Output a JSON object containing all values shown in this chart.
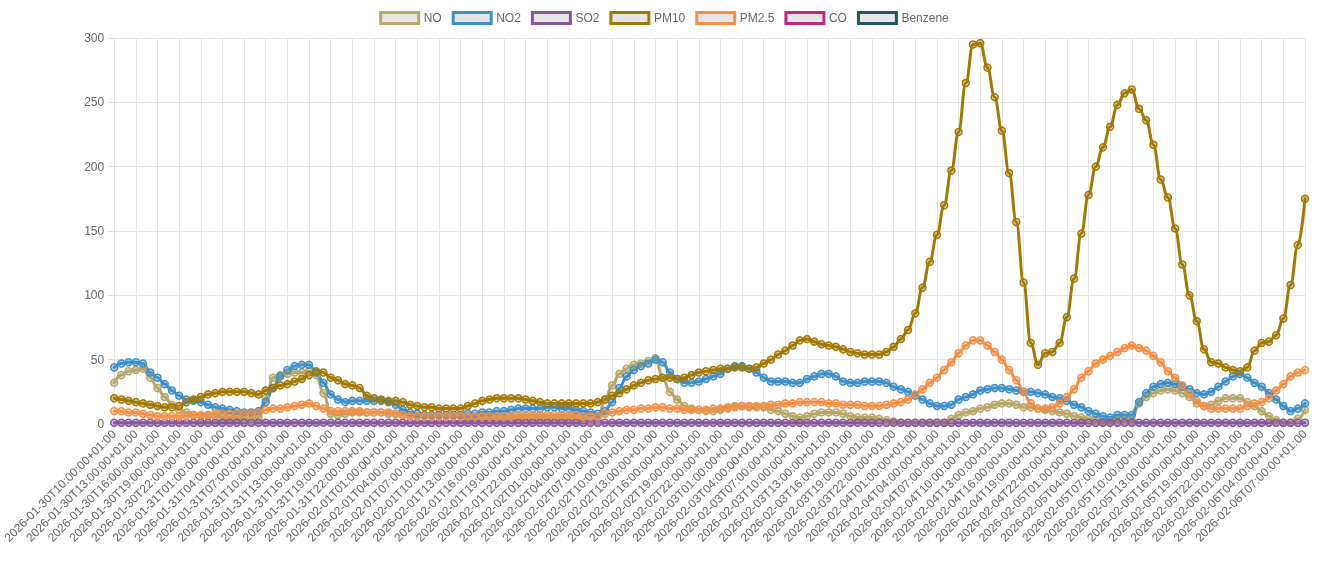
{
  "chart_data": {
    "type": "line",
    "categories": [
      "2026-01-30T10:00:00+01:00",
      null,
      null,
      "2026-01-30T13:00:00+01:00",
      null,
      null,
      "2026-01-30T16:00:00+01:00",
      null,
      null,
      "2026-01-30T19:00:00+01:00",
      null,
      null,
      "2026-01-30T22:00:00+01:00",
      null,
      null,
      "2026-01-31T01:00:00+01:00",
      null,
      null,
      "2026-01-31T04:00:00+01:00",
      null,
      null,
      "2026-01-31T07:00:00+01:00",
      null,
      null,
      "2026-01-31T10:00:00+01:00",
      null,
      null,
      "2026-01-31T13:00:00+01:00",
      null,
      null,
      "2026-01-31T16:00:00+01:00",
      null,
      null,
      "2026-01-31T19:00:00+01:00",
      null,
      null,
      "2026-01-31T22:00:00+01:00",
      null,
      null,
      "2026-02-01T01:00:00+01:00",
      null,
      null,
      "2026-02-01T04:00:00+01:00",
      null,
      null,
      "2026-02-01T07:00:00+01:00",
      null,
      null,
      "2026-02-01T10:00:00+01:00",
      null,
      null,
      "2026-02-01T13:00:00+01:00",
      null,
      null,
      "2026-02-01T16:00:00+01:00",
      null,
      null,
      "2026-02-01T19:00:00+01:00",
      null,
      null,
      "2026-02-01T22:00:00+01:00",
      null,
      null,
      "2026-02-02T01:00:00+01:00",
      null,
      null,
      "2026-02-02T04:00:00+01:00",
      null,
      null,
      "2026-02-02T07:00:00+01:00",
      null,
      null,
      "2026-02-02T10:00:00+01:00",
      null,
      null,
      "2026-02-02T13:00:00+01:00",
      null,
      null,
      "2026-02-02T16:00:00+01:00",
      null,
      null,
      "2026-02-02T19:00:00+01:00",
      null,
      null,
      "2026-02-02T22:00:00+01:00",
      null,
      null,
      "2026-02-03T01:00:00+01:00",
      null,
      null,
      "2026-02-03T04:00:00+01:00",
      null,
      null,
      "2026-02-03T07:00:00+01:00",
      null,
      null,
      "2026-02-03T10:00:00+01:00",
      null,
      null,
      "2026-02-03T13:00:00+01:00",
      null,
      null,
      "2026-02-03T16:00:00+01:00",
      null,
      null,
      "2026-02-03T19:00:00+01:00",
      null,
      null,
      "2026-02-03T22:00:00+01:00",
      null,
      null,
      "2026-02-04T01:00:00+01:00",
      null,
      null,
      "2026-02-04T04:00:00+01:00",
      null,
      null,
      "2026-02-04T07:00:00+01:00",
      null,
      null,
      "2026-02-04T10:00:00+01:00",
      null,
      null,
      "2026-02-04T13:00:00+01:00",
      null,
      null,
      "2026-02-04T16:00:00+01:00",
      null,
      null,
      "2026-02-04T19:00:00+01:00",
      null,
      null,
      "2026-02-04T22:00:00+01:00",
      null,
      null,
      "2026-02-05T01:00:00+01:00",
      null,
      null,
      "2026-02-05T04:00:00+01:00",
      null,
      null,
      "2026-02-05T07:00:00+01:00",
      null,
      null,
      "2026-02-05T10:00:00+01:00",
      null,
      null,
      "2026-02-05T13:00:00+01:00",
      null,
      null,
      "2026-02-05T16:00:00+01:00",
      null,
      null,
      "2026-02-05T19:00:00+01:00",
      null,
      null,
      "2026-02-05T22:00:00+01:00",
      null,
      null,
      "2026-02-06T01:00:00+01:00",
      null,
      null,
      "2026-02-06T04:00:00+01:00",
      null,
      null,
      "2026-02-06T07:00:00+01:00"
    ],
    "series": [
      {
        "name": "NO",
        "color": "#b8a668",
        "values": [
          32,
          38,
          41,
          42,
          43,
          36,
          28,
          21,
          15,
          11,
          9,
          7,
          6,
          6,
          6,
          5,
          5,
          5,
          4,
          3,
          5,
          20,
          36,
          38,
          39,
          40,
          40,
          41,
          38,
          24,
          8,
          7,
          8,
          9,
          9,
          9,
          9,
          9,
          8,
          8,
          7,
          6,
          6,
          6,
          6,
          6,
          6,
          6,
          6,
          5,
          5,
          5,
          5,
          5,
          5,
          5,
          5,
          5,
          5,
          5,
          5,
          5,
          5,
          5,
          5,
          4,
          3,
          3,
          19,
          30,
          39,
          43,
          46,
          47,
          49,
          51,
          36,
          25,
          19,
          14,
          12,
          11,
          10,
          10,
          11,
          12,
          14,
          14,
          13,
          13,
          13,
          11,
          10,
          8,
          6,
          5,
          6,
          8,
          9,
          9,
          9,
          8,
          6,
          5,
          5,
          5,
          4,
          3,
          2,
          1,
          1,
          1,
          1,
          1,
          1,
          1,
          4,
          7,
          9,
          10,
          12,
          13,
          15,
          16,
          16,
          15,
          13,
          13,
          12,
          11,
          10,
          9,
          8,
          6,
          5,
          4,
          3,
          2,
          2,
          3,
          3,
          3,
          16,
          21,
          24,
          26,
          27,
          26,
          24,
          21,
          16,
          14,
          15,
          18,
          20,
          20,
          20,
          17,
          14,
          10,
          6,
          3,
          1,
          1,
          4,
          11
        ]
      },
      {
        "name": "NO2",
        "color": "#3d8fc9",
        "values": [
          44,
          47,
          48,
          48,
          47,
          40,
          36,
          31,
          26,
          22,
          19,
          18,
          17,
          15,
          13,
          12,
          11,
          10,
          9,
          9,
          10,
          17,
          28,
          37,
          42,
          45,
          46,
          46,
          40,
          32,
          23,
          19,
          17,
          18,
          18,
          18,
          18,
          18,
          17,
          15,
          11,
          9,
          8,
          7,
          7,
          7,
          7,
          7,
          7,
          8,
          8,
          9,
          9,
          10,
          10,
          11,
          12,
          12,
          12,
          12,
          13,
          13,
          12,
          12,
          11,
          10,
          9,
          8,
          10,
          17,
          28,
          37,
          42,
          45,
          47,
          50,
          48,
          40,
          35,
          32,
          32,
          33,
          35,
          37,
          39,
          43,
          45,
          45,
          43,
          40,
          36,
          33,
          33,
          33,
          32,
          32,
          35,
          37,
          39,
          39,
          37,
          33,
          32,
          32,
          33,
          33,
          33,
          32,
          29,
          27,
          25,
          22,
          19,
          16,
          14,
          14,
          15,
          19,
          21,
          23,
          26,
          27,
          28,
          28,
          27,
          26,
          25,
          25,
          24,
          23,
          21,
          20,
          18,
          15,
          13,
          10,
          8,
          6,
          5,
          7,
          7,
          7,
          17,
          24,
          29,
          31,
          32,
          31,
          29,
          27,
          24,
          23,
          25,
          29,
          33,
          37,
          39,
          36,
          32,
          29,
          24,
          19,
          14,
          10,
          12,
          16
        ]
      },
      {
        "name": "SO2",
        "color": "#8b55a0",
        "values": [
          1,
          1,
          1,
          1,
          1,
          1,
          1,
          1,
          1,
          1,
          1,
          1,
          1,
          1,
          1,
          1,
          1,
          1,
          1,
          1,
          1,
          1,
          1,
          1,
          1,
          1,
          1,
          1,
          1,
          1,
          1,
          1,
          1,
          1,
          1,
          1,
          1,
          1,
          1,
          1,
          1,
          1,
          1,
          1,
          1,
          1,
          1,
          1,
          1,
          1,
          1,
          1,
          1,
          1,
          1,
          1,
          1,
          1,
          1,
          1,
          1,
          1,
          1,
          1,
          1,
          1,
          1,
          1,
          1,
          1,
          1,
          1,
          1,
          1,
          1,
          1,
          1,
          1,
          1,
          1,
          1,
          1,
          1,
          1,
          1,
          1,
          1,
          1,
          1,
          1,
          1,
          1,
          1,
          1,
          1,
          1,
          1,
          1,
          1,
          1,
          1,
          1,
          1,
          1,
          1,
          1,
          1,
          1,
          1,
          1,
          1,
          1,
          1,
          1,
          1,
          1,
          1,
          1,
          1,
          1,
          1,
          1,
          1,
          1,
          1,
          1,
          1,
          1,
          1,
          1,
          1,
          1,
          1,
          1,
          1,
          1,
          1,
          1,
          1,
          1,
          1,
          1,
          1,
          1,
          1,
          1,
          1,
          1,
          1,
          1,
          1,
          1,
          1,
          1,
          1,
          1,
          1,
          1,
          1,
          1,
          1,
          1,
          1,
          1,
          1,
          1
        ]
      },
      {
        "name": "PM10",
        "color": "#a37800",
        "values": [
          20,
          19,
          18,
          17,
          16,
          15,
          14,
          13,
          13,
          14,
          17,
          19,
          21,
          23,
          24,
          25,
          25,
          25,
          25,
          24,
          23,
          26,
          28,
          30,
          31,
          33,
          35,
          38,
          41,
          40,
          36,
          34,
          31,
          30,
          28,
          22,
          20,
          19,
          18,
          18,
          17,
          15,
          14,
          13,
          13,
          12,
          12,
          12,
          12,
          14,
          16,
          18,
          19,
          20,
          20,
          20,
          20,
          19,
          18,
          17,
          16,
          16,
          16,
          16,
          16,
          16,
          16,
          17,
          19,
          22,
          24,
          27,
          30,
          32,
          34,
          35,
          36,
          36,
          35,
          36,
          38,
          40,
          41,
          42,
          43,
          43,
          44,
          44,
          43,
          44,
          47,
          50,
          54,
          57,
          61,
          65,
          66,
          64,
          62,
          61,
          60,
          58,
          56,
          55,
          54,
          54,
          54,
          56,
          60,
          66,
          73,
          86,
          106,
          126,
          147,
          170,
          197,
          227,
          265,
          295,
          296,
          277,
          254,
          228,
          195,
          157,
          110,
          63,
          46,
          55,
          56,
          63,
          83,
          113,
          148,
          178,
          200,
          215,
          231,
          248,
          257,
          260,
          245,
          236,
          217,
          190,
          176,
          152,
          124,
          100,
          80,
          58,
          48,
          47,
          44,
          42,
          41,
          44,
          57,
          63,
          64,
          69,
          82,
          108,
          139,
          175
        ]
      },
      {
        "name": "PM2.5",
        "color": "#f68e45",
        "values": [
          10,
          10,
          9,
          9,
          8,
          7,
          6,
          6,
          6,
          6,
          6,
          7,
          7,
          7,
          8,
          8,
          8,
          8,
          8,
          8,
          9,
          11,
          12,
          12,
          13,
          14,
          15,
          16,
          14,
          12,
          10,
          10,
          10,
          10,
          10,
          9,
          9,
          9,
          9,
          8,
          7,
          6,
          6,
          6,
          6,
          6,
          6,
          6,
          6,
          6,
          6,
          6,
          6,
          6,
          6,
          6,
          7,
          7,
          7,
          7,
          7,
          7,
          7,
          7,
          7,
          6,
          6,
          6,
          8,
          9,
          10,
          11,
          11,
          12,
          12,
          13,
          13,
          12,
          12,
          11,
          11,
          11,
          11,
          12,
          12,
          13,
          13,
          14,
          14,
          14,
          14,
          15,
          15,
          16,
          16,
          17,
          17,
          17,
          17,
          16,
          16,
          15,
          15,
          15,
          14,
          14,
          14,
          15,
          16,
          17,
          19,
          23,
          27,
          32,
          36,
          42,
          48,
          55,
          61,
          65,
          65,
          61,
          56,
          50,
          42,
          34,
          25,
          16,
          12,
          12,
          13,
          16,
          21,
          27,
          36,
          41,
          47,
          50,
          53,
          56,
          59,
          61,
          59,
          57,
          53,
          48,
          41,
          36,
          30,
          24,
          18,
          14,
          12,
          12,
          12,
          12,
          12,
          14,
          16,
          17,
          20,
          26,
          31,
          37,
          40,
          42
        ]
      },
      {
        "name": "CO",
        "color": "#c02a7c",
        "values": [
          null,
          null,
          null,
          null,
          null,
          null,
          null,
          null,
          null,
          null,
          null,
          null,
          null,
          null,
          null,
          null,
          null,
          null,
          null,
          null,
          null,
          null,
          null,
          null,
          null,
          null,
          null,
          null,
          null,
          null,
          null,
          null,
          null,
          null,
          null,
          null,
          null,
          null,
          null,
          null,
          null,
          null,
          null,
          null,
          null,
          null,
          null,
          null,
          null,
          null,
          null,
          null,
          null,
          null,
          null,
          null,
          null,
          null,
          null,
          null,
          null,
          null,
          null,
          null,
          null,
          null,
          null,
          null,
          null,
          null,
          null,
          null,
          null,
          null,
          null,
          null,
          null,
          null,
          null,
          null,
          null,
          null,
          null,
          null,
          null,
          null,
          null,
          null,
          null,
          null,
          null,
          null,
          null,
          null,
          null,
          null,
          null,
          null,
          null,
          null,
          null,
          null,
          null,
          null,
          null,
          null,
          null,
          null,
          null,
          null,
          null,
          null,
          null,
          null,
          null,
          null,
          null,
          null,
          null,
          null,
          null,
          null,
          null,
          null,
          null,
          null,
          null,
          null,
          null,
          null,
          null,
          null,
          null,
          null,
          null,
          null,
          null,
          null,
          null,
          null,
          null,
          null,
          null,
          null,
          null,
          null,
          null,
          null,
          null,
          null,
          null,
          null,
          null,
          null,
          null,
          null,
          null,
          null,
          null,
          null,
          null,
          null,
          null,
          null,
          null,
          null
        ]
      },
      {
        "name": "Benzene",
        "color": "#1c5a60",
        "values": [
          null,
          null,
          null,
          null,
          null,
          null,
          null,
          null,
          null,
          null,
          null,
          null,
          null,
          null,
          null,
          null,
          null,
          null,
          null,
          null,
          null,
          null,
          null,
          null,
          null,
          null,
          null,
          null,
          null,
          null,
          null,
          null,
          null,
          null,
          null,
          null,
          null,
          null,
          null,
          null,
          null,
          null,
          null,
          null,
          null,
          null,
          null,
          null,
          null,
          null,
          null,
          null,
          null,
          null,
          null,
          null,
          null,
          null,
          null,
          null,
          null,
          null,
          null,
          null,
          null,
          null,
          null,
          null,
          null,
          null,
          null,
          null,
          null,
          null,
          null,
          null,
          null,
          null,
          null,
          null,
          null,
          null,
          null,
          null,
          null,
          null,
          null,
          null,
          null,
          null,
          null,
          null,
          null,
          null,
          null,
          null,
          null,
          null,
          null,
          null,
          null,
          null,
          null,
          null,
          null,
          null,
          null,
          null,
          null,
          null,
          null,
          null,
          null,
          null,
          null,
          null,
          null,
          null,
          null,
          null,
          null,
          null,
          null,
          null,
          null,
          null,
          null,
          null,
          null,
          null,
          null,
          null,
          null,
          null,
          null,
          null,
          null,
          null,
          null,
          null,
          null,
          null,
          null,
          null,
          null,
          null,
          null,
          null,
          null,
          null,
          null,
          null,
          null,
          null,
          null,
          null,
          null,
          null,
          null,
          null,
          null,
          null,
          null,
          null,
          null,
          null
        ]
      }
    ],
    "ylim": [
      0,
      300
    ],
    "yticks": [
      0,
      50,
      100,
      150,
      200,
      250,
      300
    ],
    "grid": true,
    "legend": "top",
    "marker": "circle",
    "line_style": "solid"
  }
}
